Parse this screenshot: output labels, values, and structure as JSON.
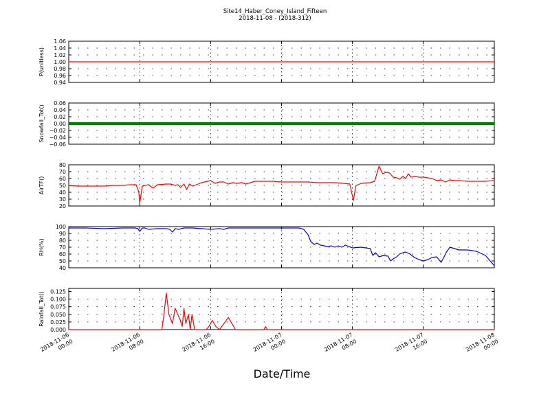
{
  "title": "Site14_Haber_Coney_Island_Fifteen",
  "subtitle": "2018-11-08 - (2018-312)",
  "xlabel": "Date/Time",
  "x_ticks": [
    {
      "line1": "2018-11-06",
      "line2": "00:00",
      "t": 0
    },
    {
      "line1": "2018-11-06",
      "line2": "08:00",
      "t": 8
    },
    {
      "line1": "2018-11-06",
      "line2": "16:00",
      "t": 16
    },
    {
      "line1": "2018-11-07",
      "line2": "00:00",
      "t": 24
    },
    {
      "line1": "2018-11-07",
      "line2": "08:00",
      "t": 32
    },
    {
      "line1": "2018-11-07",
      "line2": "16:00",
      "t": 40
    },
    {
      "line1": "2018-11-08",
      "line2": "00:00",
      "t": 48
    }
  ],
  "chart_data": [
    {
      "type": "line",
      "ylabel": "P(unitless)",
      "color": "#ff0000",
      "ylim": [
        0.94,
        1.06
      ],
      "yticks": [
        0.94,
        0.96,
        0.98,
        1.0,
        1.02,
        1.04,
        1.06
      ],
      "ytick_labels": [
        "0.94",
        "0.96",
        "0.98",
        "1.00",
        "1.02",
        "1.04",
        "1.06"
      ],
      "x": [
        0,
        48
      ],
      "y": [
        1.0,
        1.0
      ]
    },
    {
      "type": "line",
      "ylabel": "Snowfall_Tot()",
      "color": "#008000",
      "thick": true,
      "ylim": [
        -0.06,
        0.06
      ],
      "yticks": [
        -0.06,
        -0.04,
        -0.02,
        0.0,
        0.02,
        0.04,
        0.06
      ],
      "ytick_labels": [
        "−0.06",
        "−0.04",
        "−0.02",
        "0.00",
        "0.02",
        "0.04",
        "0.06"
      ],
      "x": [
        0,
        48
      ],
      "y": [
        0.0,
        0.0
      ]
    },
    {
      "type": "line",
      "ylabel": "AirTF()",
      "color": "#ff0000",
      "ylim": [
        20,
        80
      ],
      "yticks": [
        20,
        30,
        40,
        50,
        60,
        70,
        80
      ],
      "ytick_labels": [
        "20",
        "30",
        "40",
        "50",
        "60",
        "70",
        "80"
      ],
      "x": [
        0,
        1,
        2,
        3,
        4,
        5,
        6,
        7,
        7.6,
        7.9,
        8.0,
        8.3,
        8.6,
        9.0,
        9.5,
        10,
        11,
        11.5,
        12,
        12.3,
        12.6,
        13,
        13.3,
        13.6,
        14,
        15,
        16,
        16.5,
        17,
        17.5,
        18,
        18.5,
        19,
        19.5,
        20,
        21,
        22,
        23,
        24,
        25,
        26,
        27,
        28,
        29,
        30,
        31,
        31.7,
        31.9,
        32.1,
        32.4,
        33,
        34,
        34.5,
        35.0,
        35.4,
        35.8,
        36.2,
        36.6,
        37,
        37.3,
        37.7,
        38,
        38.3,
        38.6,
        39,
        39.5,
        40,
        40.5,
        41,
        41.5,
        42,
        42.5,
        43,
        43.5,
        44,
        45,
        46,
        47,
        48
      ],
      "y": [
        50,
        49,
        49,
        49,
        49,
        50,
        50,
        51,
        51,
        40,
        24,
        49,
        50,
        51,
        46,
        51,
        52,
        52,
        50,
        51,
        47,
        52,
        44,
        52,
        49,
        54,
        57,
        53,
        55,
        55,
        52,
        54,
        53,
        54,
        52,
        56,
        56,
        56,
        55,
        55,
        55,
        55,
        54,
        54,
        54,
        53,
        52,
        40,
        28,
        50,
        53,
        54,
        56,
        78,
        67,
        69,
        68,
        62,
        61,
        59,
        63,
        60,
        67,
        62,
        63,
        62,
        62,
        61,
        60,
        57,
        58,
        55,
        58,
        57,
        57,
        56,
        56,
        56,
        57
      ]
    },
    {
      "type": "line",
      "ylabel": "RH(%)",
      "color": "#0000cc",
      "ylim": [
        40,
        100
      ],
      "yticks": [
        40,
        50,
        60,
        70,
        80,
        90,
        100
      ],
      "ytick_labels": [
        "40",
        "50",
        "60",
        "70",
        "80",
        "90",
        "100"
      ],
      "x": [
        0,
        2,
        4,
        6,
        7.5,
        7.8,
        8.0,
        8.3,
        8.6,
        9,
        10,
        11,
        11.4,
        11.7,
        12,
        12.4,
        13,
        14,
        15,
        16,
        17,
        17.5,
        18,
        19,
        20,
        21,
        22,
        23,
        24,
        25,
        26,
        26.5,
        27,
        27.3,
        27.7,
        28,
        28.4,
        28.8,
        29.2,
        29.6,
        30,
        30.4,
        30.8,
        31.2,
        31.6,
        32,
        33,
        34,
        34.3,
        34.6,
        35,
        35.5,
        36,
        36.3,
        36.6,
        37,
        37.3,
        37.7,
        38,
        38.5,
        39,
        39.5,
        40,
        40.5,
        41,
        41.5,
        42,
        42.3,
        42.6,
        43,
        43.5,
        44,
        45,
        46,
        47,
        48
      ],
      "y": [
        98,
        98,
        97,
        98,
        98,
        97,
        93,
        98,
        98,
        96,
        97,
        97,
        96,
        92,
        97,
        96,
        98,
        98,
        97,
        96,
        97,
        96,
        98,
        98,
        98,
        98,
        98,
        98,
        98,
        98,
        98,
        96,
        88,
        78,
        74,
        76,
        73,
        72,
        71,
        72,
        70,
        72,
        70,
        73,
        71,
        69,
        70,
        68,
        58,
        62,
        56,
        58,
        57,
        50,
        53,
        56,
        60,
        62,
        63,
        60,
        55,
        52,
        50,
        52,
        55,
        56,
        48,
        55,
        63,
        70,
        68,
        66,
        66,
        64,
        58,
        43
      ]
    },
    {
      "type": "line",
      "ylabel": "Rainfall_Tot()",
      "color": "#ff0000",
      "ylim": [
        0.0,
        0.135
      ],
      "yticks": [
        0.0,
        0.025,
        0.05,
        0.075,
        0.1,
        0.125
      ],
      "ytick_labels": [
        "0.000",
        "0.025",
        "0.050",
        "0.075",
        "0.100",
        "0.125"
      ],
      "x": [
        0,
        10.5,
        10.7,
        11.0,
        11.3,
        11.7,
        12.0,
        12.3,
        12.6,
        12.8,
        13.0,
        13.2,
        13.5,
        13.7,
        13.9,
        14.2,
        14.5,
        15.5,
        15.8,
        16.2,
        16.6,
        17.0,
        17.5,
        18.0,
        18.4,
        18.8,
        19.0,
        22.0,
        22.2,
        22.4,
        48
      ],
      "y": [
        0,
        0,
        0.04,
        0.12,
        0.05,
        0.02,
        0.07,
        0.05,
        0.03,
        0.01,
        0.07,
        0.02,
        0.05,
        0.0,
        0.05,
        0.0,
        0.0,
        0.0,
        0.01,
        0.03,
        0.01,
        0.0,
        0.02,
        0.04,
        0.02,
        0.0,
        0.0,
        0.0,
        0.01,
        0.0,
        0.0
      ]
    }
  ]
}
